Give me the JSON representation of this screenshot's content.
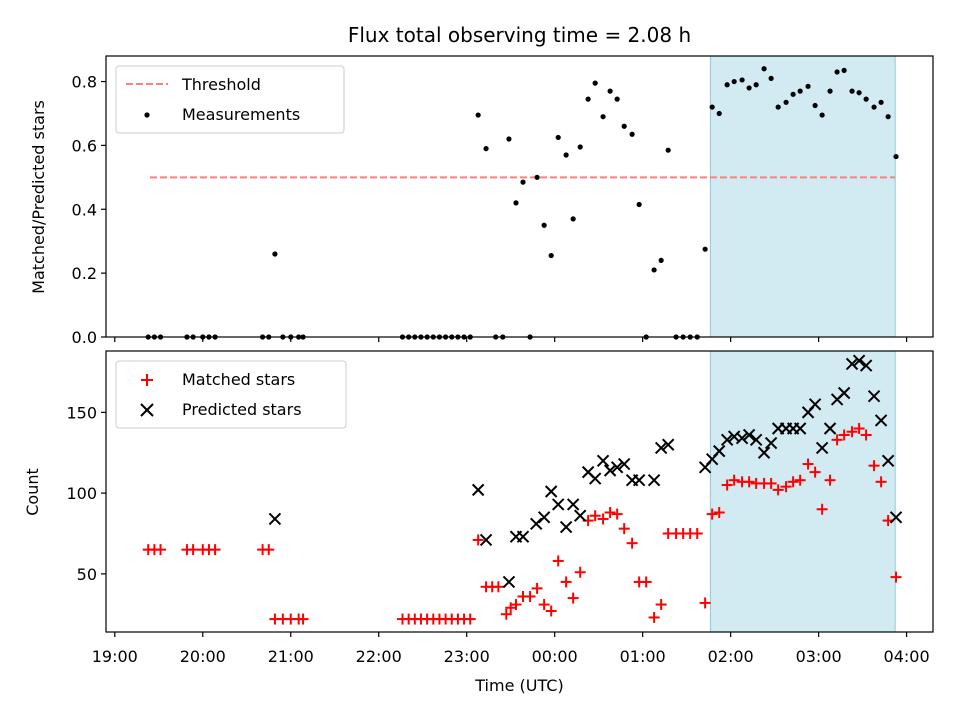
{
  "chart_data": [
    {
      "type": "scatter",
      "title": "Flux total observing time = 2.08 h",
      "xlabel": "",
      "ylabel": "Matched/Predicted stars",
      "xlim": [
        -0.1,
        9.3
      ],
      "ylim": [
        0,
        0.88
      ],
      "yticks": [
        0.0,
        0.2,
        0.4,
        0.6,
        0.8
      ],
      "ytick_labels": [
        "0.0",
        "0.2",
        "0.4",
        "0.6",
        "0.8"
      ],
      "shaded_region": {
        "x": [
          6.77,
          8.87
        ],
        "color": "#add8e6"
      },
      "legend": {
        "placement": "upper left",
        "entries": [
          "Threshold",
          "Measurements"
        ]
      },
      "threshold": {
        "name": "Threshold",
        "y": 0.5,
        "x": [
          0.4,
          8.87
        ],
        "color": "#ff7f7f",
        "style": "dashed"
      },
      "series": [
        {
          "name": "Measurements",
          "color": "#000000",
          "points": [
            [
              0.38,
              0.0
            ],
            [
              0.45,
              0.0
            ],
            [
              0.52,
              0.0
            ],
            [
              0.82,
              0.0
            ],
            [
              0.89,
              0.0
            ],
            [
              1.0,
              0.0
            ],
            [
              1.07,
              0.0
            ],
            [
              1.14,
              0.0
            ],
            [
              1.68,
              0.0
            ],
            [
              1.75,
              0.0
            ],
            [
              1.82,
              0.26
            ],
            [
              1.91,
              0.0
            ],
            [
              2.0,
              0.0
            ],
            [
              2.09,
              0.0
            ],
            [
              2.14,
              0.0
            ],
            [
              3.27,
              0.0
            ],
            [
              3.34,
              0.0
            ],
            [
              3.41,
              0.0
            ],
            [
              3.48,
              0.0
            ],
            [
              3.55,
              0.0
            ],
            [
              3.62,
              0.0
            ],
            [
              3.69,
              0.0
            ],
            [
              3.76,
              0.0
            ],
            [
              3.83,
              0.0
            ],
            [
              3.9,
              0.0
            ],
            [
              3.97,
              0.0
            ],
            [
              4.04,
              0.0
            ],
            [
              4.13,
              0.695
            ],
            [
              4.22,
              0.59
            ],
            [
              4.33,
              0.0
            ],
            [
              4.41,
              0.0
            ],
            [
              4.48,
              0.62
            ],
            [
              4.56,
              0.42
            ],
            [
              4.64,
              0.485
            ],
            [
              4.72,
              0.0
            ],
            [
              4.8,
              0.5
            ],
            [
              4.88,
              0.35
            ],
            [
              4.96,
              0.255
            ],
            [
              5.04,
              0.625
            ],
            [
              5.13,
              0.57
            ],
            [
              5.21,
              0.37
            ],
            [
              5.29,
              0.595
            ],
            [
              5.38,
              0.745
            ],
            [
              5.46,
              0.795
            ],
            [
              5.55,
              0.69
            ],
            [
              5.63,
              0.77
            ],
            [
              5.71,
              0.745
            ],
            [
              5.79,
              0.66
            ],
            [
              5.88,
              0.635
            ],
            [
              5.96,
              0.415
            ],
            [
              6.04,
              0.0
            ],
            [
              6.13,
              0.21
            ],
            [
              6.21,
              0.24
            ],
            [
              6.29,
              0.585
            ],
            [
              6.38,
              0.0
            ],
            [
              6.46,
              0.0
            ],
            [
              6.54,
              0.0
            ],
            [
              6.62,
              0.0
            ],
            [
              6.71,
              0.275
            ],
            [
              6.79,
              0.72
            ],
            [
              6.87,
              0.7
            ],
            [
              6.96,
              0.79
            ],
            [
              7.04,
              0.8
            ],
            [
              7.13,
              0.805
            ],
            [
              7.21,
              0.78
            ],
            [
              7.29,
              0.79
            ],
            [
              7.38,
              0.84
            ],
            [
              7.46,
              0.81
            ],
            [
              7.54,
              0.72
            ],
            [
              7.63,
              0.735
            ],
            [
              7.71,
              0.76
            ],
            [
              7.79,
              0.77
            ],
            [
              7.88,
              0.785
            ],
            [
              7.96,
              0.725
            ],
            [
              8.04,
              0.695
            ],
            [
              8.13,
              0.77
            ],
            [
              8.21,
              0.83
            ],
            [
              8.29,
              0.835
            ],
            [
              8.38,
              0.77
            ],
            [
              8.46,
              0.765
            ],
            [
              8.54,
              0.745
            ],
            [
              8.63,
              0.72
            ],
            [
              8.71,
              0.735
            ],
            [
              8.79,
              0.69
            ],
            [
              8.88,
              0.565
            ]
          ]
        }
      ]
    },
    {
      "type": "scatter",
      "title": "",
      "xlabel": "Time (UTC)",
      "ylabel": "Count",
      "xlim": [
        -0.1,
        9.3
      ],
      "ylim": [
        14,
        188
      ],
      "yticks": [
        50,
        100,
        150
      ],
      "ytick_labels": [
        "50",
        "100",
        "150"
      ],
      "xticks": [
        0,
        1,
        2,
        3,
        4,
        5,
        6,
        7,
        8,
        9
      ],
      "xtick_labels": [
        "19:00",
        "20:00",
        "21:00",
        "22:00",
        "23:00",
        "00:00",
        "01:00",
        "02:00",
        "03:00",
        "04:00"
      ],
      "shaded_region": {
        "x": [
          6.77,
          8.87
        ],
        "color": "#add8e6"
      },
      "legend": {
        "placement": "upper left",
        "entries": [
          "Matched stars",
          "Predicted stars"
        ]
      },
      "series": [
        {
          "name": "Matched stars",
          "marker": "plus",
          "color": "#ff0000",
          "points": [
            [
              0.38,
              65
            ],
            [
              0.45,
              65
            ],
            [
              0.52,
              65
            ],
            [
              0.82,
              65
            ],
            [
              0.89,
              65
            ],
            [
              1.0,
              65
            ],
            [
              1.07,
              65
            ],
            [
              1.14,
              65
            ],
            [
              1.68,
              65
            ],
            [
              1.75,
              65
            ],
            [
              1.82,
              22
            ],
            [
              1.91,
              22
            ],
            [
              2.0,
              22
            ],
            [
              2.09,
              22
            ],
            [
              2.14,
              22
            ],
            [
              3.27,
              22
            ],
            [
              3.34,
              22
            ],
            [
              3.41,
              22
            ],
            [
              3.48,
              22
            ],
            [
              3.55,
              22
            ],
            [
              3.62,
              22
            ],
            [
              3.69,
              22
            ],
            [
              3.76,
              22
            ],
            [
              3.83,
              22
            ],
            [
              3.9,
              22
            ],
            [
              3.97,
              22
            ],
            [
              4.04,
              22
            ],
            [
              4.13,
              71
            ],
            [
              4.22,
              42
            ],
            [
              4.29,
              42
            ],
            [
              4.36,
              42
            ],
            [
              4.45,
              25
            ],
            [
              4.5,
              29
            ],
            [
              4.56,
              31
            ],
            [
              4.64,
              36
            ],
            [
              4.72,
              36
            ],
            [
              4.8,
              41
            ],
            [
              4.88,
              31
            ],
            [
              4.96,
              27
            ],
            [
              5.04,
              58
            ],
            [
              5.13,
              45
            ],
            [
              5.21,
              35
            ],
            [
              5.29,
              51
            ],
            [
              5.38,
              83
            ],
            [
              5.46,
              86
            ],
            [
              5.55,
              84
            ],
            [
              5.63,
              88
            ],
            [
              5.71,
              87
            ],
            [
              5.79,
              78
            ],
            [
              5.88,
              69
            ],
            [
              5.96,
              45
            ],
            [
              6.04,
              45
            ],
            [
              6.13,
              23
            ],
            [
              6.21,
              31
            ],
            [
              6.29,
              75
            ],
            [
              6.38,
              75
            ],
            [
              6.46,
              75
            ],
            [
              6.54,
              75
            ],
            [
              6.62,
              75
            ],
            [
              6.71,
              32
            ],
            [
              6.79,
              87
            ],
            [
              6.87,
              88
            ],
            [
              6.96,
              105
            ],
            [
              7.04,
              108
            ],
            [
              7.13,
              107
            ],
            [
              7.21,
              107
            ],
            [
              7.29,
              106
            ],
            [
              7.38,
              106
            ],
            [
              7.46,
              106
            ],
            [
              7.54,
              102
            ],
            [
              7.63,
              104
            ],
            [
              7.71,
              107
            ],
            [
              7.79,
              108
            ],
            [
              7.88,
              118
            ],
            [
              7.96,
              113
            ],
            [
              8.04,
              90
            ],
            [
              8.13,
              108
            ],
            [
              8.21,
              133
            ],
            [
              8.29,
              136
            ],
            [
              8.38,
              138
            ],
            [
              8.46,
              140
            ],
            [
              8.54,
              136
            ],
            [
              8.63,
              117
            ],
            [
              8.71,
              107
            ],
            [
              8.79,
              83
            ],
            [
              8.88,
              48
            ]
          ]
        },
        {
          "name": "Predicted stars",
          "marker": "x",
          "color": "#000000",
          "points": [
            [
              1.82,
              84
            ],
            [
              4.13,
              102
            ],
            [
              4.22,
              71
            ],
            [
              4.48,
              45
            ],
            [
              4.56,
              73
            ],
            [
              4.64,
              73
            ],
            [
              4.79,
              81
            ],
            [
              4.88,
              85
            ],
            [
              4.96,
              101
            ],
            [
              5.04,
              93
            ],
            [
              5.13,
              79
            ],
            [
              5.21,
              93
            ],
            [
              5.29,
              86
            ],
            [
              5.38,
              113
            ],
            [
              5.46,
              109
            ],
            [
              5.55,
              120
            ],
            [
              5.63,
              114
            ],
            [
              5.71,
              116
            ],
            [
              5.79,
              118
            ],
            [
              5.88,
              108
            ],
            [
              5.96,
              108
            ],
            [
              6.13,
              108
            ],
            [
              6.21,
              128
            ],
            [
              6.29,
              130
            ],
            [
              6.71,
              116
            ],
            [
              6.79,
              121
            ],
            [
              6.87,
              126
            ],
            [
              6.96,
              133
            ],
            [
              7.04,
              135
            ],
            [
              7.13,
              134
            ],
            [
              7.21,
              136
            ],
            [
              7.29,
              133
            ],
            [
              7.38,
              125
            ],
            [
              7.46,
              131
            ],
            [
              7.54,
              140
            ],
            [
              7.63,
              140
            ],
            [
              7.71,
              140
            ],
            [
              7.79,
              140
            ],
            [
              7.88,
              150
            ],
            [
              7.96,
              155
            ],
            [
              8.04,
              128
            ],
            [
              8.13,
              140
            ],
            [
              8.21,
              158
            ],
            [
              8.29,
              162
            ],
            [
              8.38,
              180
            ],
            [
              8.46,
              182
            ],
            [
              8.54,
              179
            ],
            [
              8.63,
              160
            ],
            [
              8.71,
              145
            ],
            [
              8.79,
              120
            ],
            [
              8.88,
              85
            ]
          ]
        }
      ]
    }
  ]
}
